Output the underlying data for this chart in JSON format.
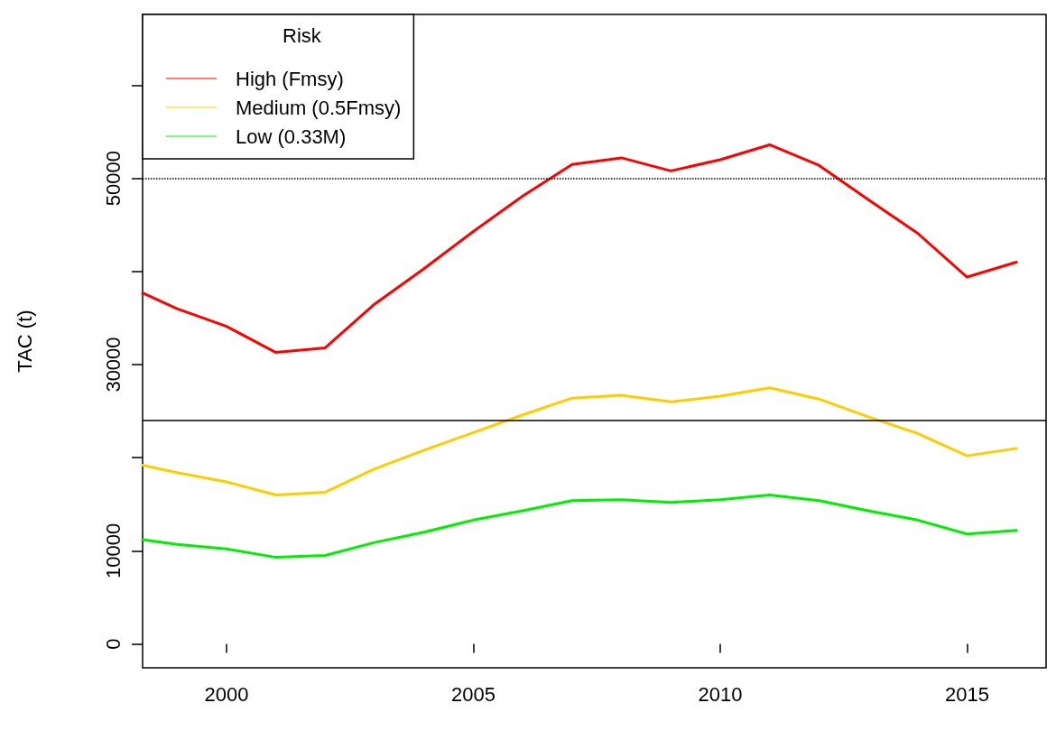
{
  "chart_data": {
    "type": "line",
    "ylabel": "TAC (t)",
    "legend_title": "Risk",
    "legend": "top left",
    "grid": false,
    "marker": "none",
    "line_style": "solid",
    "xlim": [
      1998.3,
      2016.6
    ],
    "xticks": [
      2000,
      2005,
      2010,
      2015
    ],
    "ylim": [
      -2560,
      67600
    ],
    "yticks": [
      0,
      10000,
      {
        "value": 20000,
        "label": null
      },
      30000,
      {
        "value": 40000,
        "label": null
      },
      50000,
      {
        "value": 60000,
        "label": null
      }
    ],
    "ref_lines": [
      {
        "axis": "y",
        "value": 50000,
        "label": null,
        "color": "#000000",
        "line_style": "dotted"
      },
      {
        "axis": "y",
        "value": 24000,
        "label": null,
        "color": "#000000",
        "line_style": "solid"
      }
    ],
    "series": [
      {
        "name": "High (Fmsy)",
        "color": "#ff0000",
        "x": [
          1998.3,
          1999,
          2000,
          2001,
          2002,
          2003,
          2004,
          2005,
          2006,
          2007,
          2008,
          2009,
          2010,
          2011,
          2012,
          2013,
          2014,
          2015,
          2016
        ],
        "values": [
          37700,
          36000,
          34100,
          31300,
          31800,
          36500,
          40300,
          44300,
          48100,
          51500,
          52200,
          50800,
          52000,
          53600,
          51400,
          47700,
          44100,
          39400,
          41000
        ]
      },
      {
        "name": "Medium (0.5Fmsy)",
        "color": "#ffcc00",
        "x": [
          1998.3,
          1999,
          2000,
          2001,
          2002,
          2003,
          2004,
          2005,
          2006,
          2007,
          2008,
          2009,
          2010,
          2011,
          2012,
          2013,
          2014,
          2015,
          2016
        ],
        "values": [
          19200,
          18400,
          17400,
          16000,
          16300,
          18800,
          20800,
          22700,
          24600,
          26400,
          26700,
          26000,
          26600,
          27500,
          26300,
          24400,
          22600,
          20200,
          21000
        ]
      },
      {
        "name": "Low (0.33M)",
        "color": "#00ee00",
        "x": [
          1998.3,
          1999,
          2000,
          2001,
          2002,
          2003,
          2004,
          2005,
          2006,
          2007,
          2008,
          2009,
          2010,
          2011,
          2012,
          2013,
          2014,
          2015,
          2016
        ],
        "values": [
          11200,
          10700,
          10200,
          9300,
          9500,
          10900,
          12000,
          13300,
          14300,
          15400,
          15500,
          15200,
          15500,
          16000,
          15400,
          14300,
          13300,
          11800,
          12200
        ]
      }
    ]
  }
}
